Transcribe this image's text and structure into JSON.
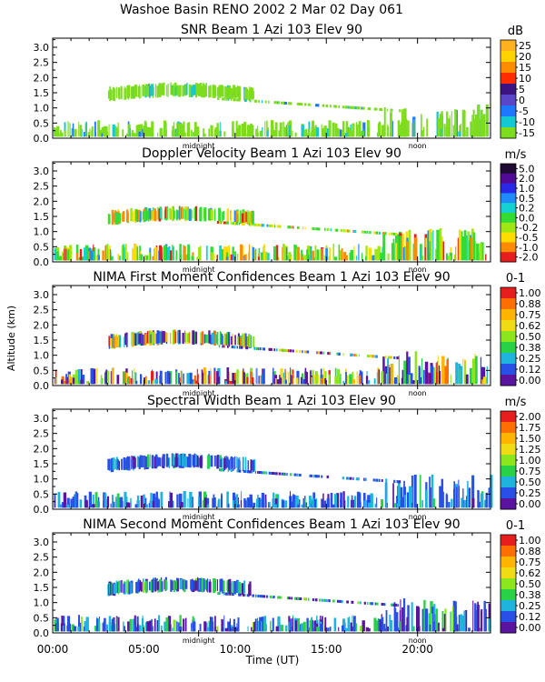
{
  "figure": {
    "title": "Washoe Basin RENO 2002    2 Mar 02 Day 061",
    "ylabel": "Altitude (km)",
    "xlabel": "Time (UT)"
  },
  "chart_data": [
    {
      "type": "heatmap",
      "title": "SNR Beam 1 Azi 103 Elev 90",
      "unit": "dB",
      "cb_labels": [
        "25",
        "20",
        "15",
        "10",
        "5",
        "0",
        "-5",
        "-10",
        "-15"
      ],
      "cb_colors": [
        "#ffb21e",
        "#ffd300",
        "#ff8c00",
        "#ff2d00",
        "#3c1482",
        "#5a46c8",
        "#1e78ff",
        "#14c8d2",
        "#7ddc1e"
      ]
    },
    {
      "type": "heatmap",
      "title": "Doppler Velocity Beam 1 Azi 103 Elev 90",
      "unit": "m/s",
      "cb_labels": [
        "5.0",
        "2.0",
        "1.0",
        "0.5",
        "0.2",
        "0.0",
        "-0.2",
        "-0.5",
        "-1.0",
        "-2.0"
      ],
      "cb_colors": [
        "#1e0a32",
        "#500a96",
        "#2828e6",
        "#1e8cff",
        "#14d2d2",
        "#32dc32",
        "#a0e614",
        "#ffdc00",
        "#ff8c00",
        "#e61e1e"
      ]
    },
    {
      "type": "heatmap",
      "title": "NIMA First Moment Confidences Beam 1 Azi 103 Elev 90",
      "unit": "0-1",
      "cb_labels": [
        "1.00",
        "0.88",
        "0.75",
        "0.62",
        "0.50",
        "0.38",
        "0.25",
        "0.12",
        "0.00"
      ],
      "cb_colors": [
        "#e61e1e",
        "#ff6e00",
        "#ffb400",
        "#f0dc14",
        "#8ce61e",
        "#28d246",
        "#1eb4dc",
        "#2850e6",
        "#5a14a0"
      ]
    },
    {
      "type": "heatmap",
      "title": "Spectral Width Beam 1 Azi 103 Elev 90",
      "unit": "m/s",
      "cb_labels": [
        "2.00",
        "1.75",
        "1.50",
        "1.25",
        "1.00",
        "0.75",
        "0.50",
        "0.25",
        "0.00"
      ],
      "cb_colors": [
        "#e61e1e",
        "#ff6e00",
        "#ffb400",
        "#f0dc14",
        "#8ce61e",
        "#28d246",
        "#1eb4dc",
        "#2850e6",
        "#5a14a0"
      ]
    },
    {
      "type": "heatmap",
      "title": "NIMA Second Moment Confidences Beam 1 Azi 103 Elev 90",
      "unit": "0-1",
      "cb_labels": [
        "1.00",
        "0.88",
        "0.75",
        "0.62",
        "0.50",
        "0.38",
        "0.25",
        "0.12",
        "0.00"
      ],
      "cb_colors": [
        "#e61e1e",
        "#ff6e00",
        "#ffb400",
        "#f0dc14",
        "#8ce61e",
        "#28d246",
        "#1eb4dc",
        "#2850e6",
        "#5a14a0"
      ]
    }
  ],
  "axes": {
    "x_range_hours": [
      0,
      24
    ],
    "y_range_km": [
      0,
      3.3
    ],
    "y_ticks": [
      "3.0",
      "2.5",
      "2.0",
      "1.5",
      "1.0",
      "0.5",
      "0.0"
    ],
    "y_tick_values": [
      3.0,
      2.5,
      2.0,
      1.5,
      1.0,
      0.5,
      0.0
    ],
    "x_tick_labels": [
      "00:00",
      "05:00",
      "10:00",
      "15:00",
      "20:00"
    ],
    "x_tick_hours": [
      0,
      5,
      10,
      15,
      20
    ],
    "midnight_label": "midnight",
    "midnight_hour": 8,
    "noon_label": "noon",
    "noon_hour": 20
  }
}
